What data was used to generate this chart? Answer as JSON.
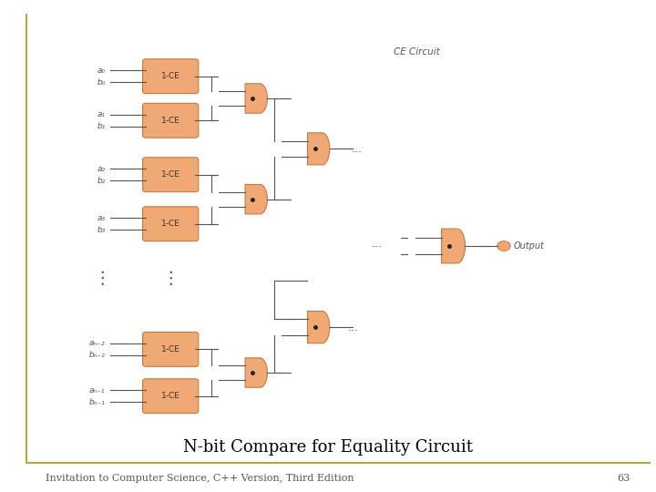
{
  "title": "N-bit Compare for Equality Circuit",
  "subtitle": "Invitation to Computer Science, C++ Version, Third Edition",
  "page_number": "63",
  "ce_label": "CE Circuit",
  "bg_color": "#ffffff",
  "border_color": "#b5a642",
  "box_color": "#f0a875",
  "box_edge_color": "#c87840",
  "wire_color": "#555555",
  "dot_color": "#222222",
  "output_dot_color": "#f0a875",
  "title_fontsize": 13,
  "footer_fontsize": 8,
  "label_fontsize": 7.5
}
